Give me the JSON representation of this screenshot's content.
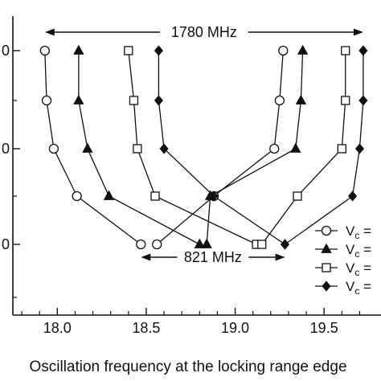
{
  "chart_data": {
    "type": "line",
    "xlabel": "Oscillation frequency at the locking range edge",
    "ylabel": "",
    "xlim": [
      17.75,
      19.82
    ],
    "ylim": [
      0,
      1
    ],
    "x_ticks": [
      "18.0",
      "18.5",
      "19.0",
      "19.5"
    ],
    "y_tick_labels_visible": [
      "0",
      "0",
      "0"
    ],
    "grid": false,
    "legend_position": "bottom-right",
    "series": [
      {
        "name": "V",
        "subscript": "c",
        "suffix": " =",
        "marker": "circle-open",
        "left_branch": [
          {
            "x": 17.93,
            "level": 5
          },
          {
            "x": 17.94,
            "level": 4
          },
          {
            "x": 17.98,
            "level": 3
          },
          {
            "x": 18.11,
            "level": 2
          },
          {
            "x": 18.47,
            "level": 1
          }
        ],
        "right_branch": [
          {
            "x": 19.27,
            "level": 5
          },
          {
            "x": 19.25,
            "level": 4
          },
          {
            "x": 19.22,
            "level": 3
          },
          {
            "x": 18.88,
            "level": 2
          },
          {
            "x": 18.56,
            "level": 1
          }
        ]
      },
      {
        "name": "V",
        "subscript": "c",
        "suffix": " =",
        "marker": "triangle-filled",
        "left_branch": [
          {
            "x": 18.12,
            "level": 5
          },
          {
            "x": 18.12,
            "level": 4
          },
          {
            "x": 18.17,
            "level": 3
          },
          {
            "x": 18.29,
            "level": 2
          },
          {
            "x": 18.8,
            "level": 1
          }
        ],
        "right_branch": [
          {
            "x": 19.38,
            "level": 5
          },
          {
            "x": 19.37,
            "level": 4
          },
          {
            "x": 19.34,
            "level": 3
          },
          {
            "x": 18.86,
            "level": 2
          },
          {
            "x": 18.84,
            "level": 1
          }
        ]
      },
      {
        "name": "V",
        "subscript": "c",
        "suffix": " =",
        "marker": "square-open",
        "left_branch": [
          {
            "x": 18.4,
            "level": 5
          },
          {
            "x": 18.43,
            "level": 4
          },
          {
            "x": 18.45,
            "level": 3
          },
          {
            "x": 18.55,
            "level": 2
          },
          {
            "x": 19.12,
            "level": 1
          }
        ],
        "right_branch": [
          {
            "x": 19.62,
            "level": 5
          },
          {
            "x": 19.62,
            "level": 4
          },
          {
            "x": 19.6,
            "level": 3
          },
          {
            "x": 19.35,
            "level": 2
          },
          {
            "x": 19.15,
            "level": 1
          }
        ]
      },
      {
        "name": "V",
        "subscript": "c",
        "suffix": " =",
        "marker": "diamond-filled",
        "left_branch": [
          {
            "x": 18.57,
            "level": 5
          },
          {
            "x": 18.57,
            "level": 4
          },
          {
            "x": 18.6,
            "level": 3
          },
          {
            "x": 18.88,
            "level": 2
          },
          {
            "x": 19.28,
            "level": 1
          }
        ],
        "right_branch": [
          {
            "x": 19.72,
            "level": 5
          },
          {
            "x": 19.72,
            "level": 4
          },
          {
            "x": 19.7,
            "level": 3
          },
          {
            "x": 19.66,
            "level": 2
          },
          {
            "x": 19.28,
            "level": 1
          }
        ]
      }
    ],
    "annotations": [
      {
        "text": "1780  MHz",
        "from_x": 17.93,
        "to_x": 19.72,
        "level": 5.5
      },
      {
        "text": "821 MHz",
        "from_x": 18.47,
        "to_x": 19.28,
        "level": 0.55
      }
    ]
  }
}
